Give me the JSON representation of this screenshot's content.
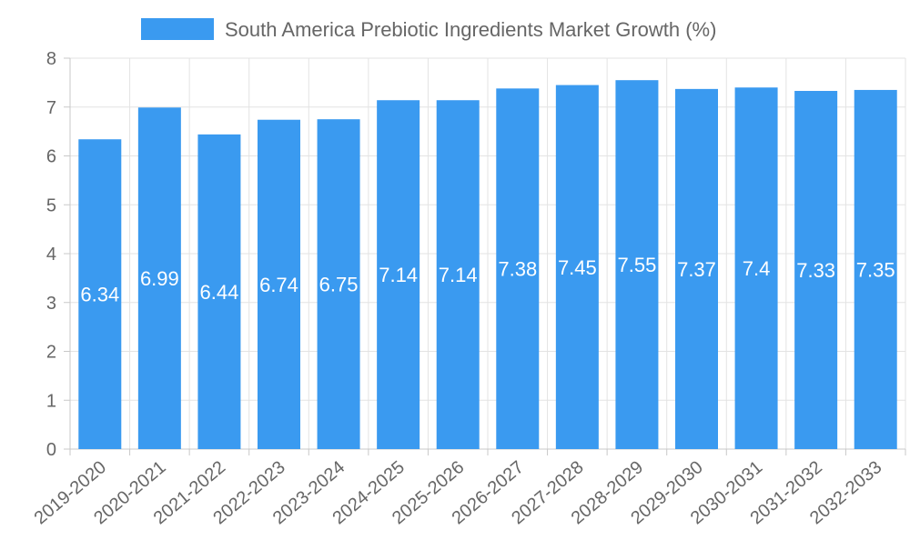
{
  "chart_data": {
    "type": "bar",
    "title": "",
    "xlabel": "",
    "ylabel": "",
    "ylim": [
      0,
      8
    ],
    "y_ticks": [
      0,
      1,
      2,
      3,
      4,
      5,
      6,
      7,
      8
    ],
    "grid": true,
    "legend_position": "top-center",
    "categories": [
      "2019-2020",
      "2020-2021",
      "2021-2022",
      "2022-2023",
      "2023-2024",
      "2024-2025",
      "2025-2026",
      "2026-2027",
      "2027-2028",
      "2028-2029",
      "2029-2030",
      "2030-2031",
      "2031-2032",
      "2032-2033"
    ],
    "series": [
      {
        "name": "South America Prebiotic Ingredients Market Growth (%)",
        "color": "#3a9af0",
        "values": [
          6.34,
          6.99,
          6.44,
          6.74,
          6.75,
          7.14,
          7.14,
          7.38,
          7.45,
          7.55,
          7.37,
          7.4,
          7.33,
          7.35
        ],
        "labels": [
          "6.34",
          "6.99",
          "6.44",
          "6.74",
          "6.75",
          "7.14",
          "7.14",
          "7.38",
          "7.45",
          "7.55",
          "7.37",
          "7.4",
          "7.33",
          "7.35"
        ]
      }
    ]
  }
}
